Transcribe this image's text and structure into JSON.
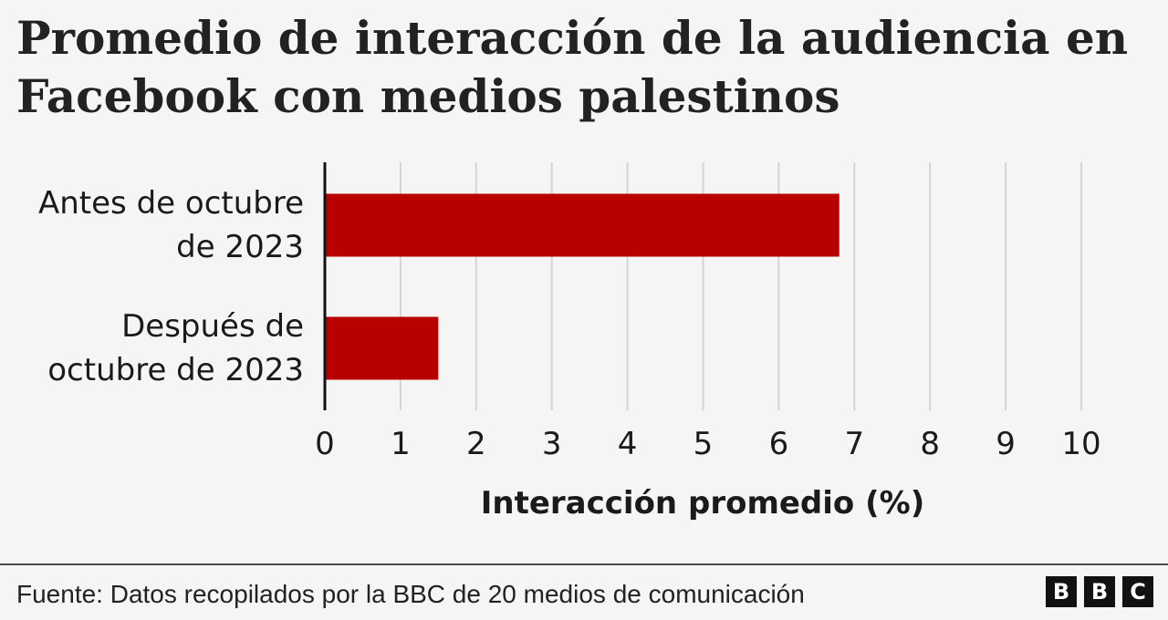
{
  "title": "Promedio de interacción de la audiencia en Facebook con medios palestinos",
  "chart_data": {
    "type": "bar",
    "orientation": "horizontal",
    "categories": [
      [
        "Antes de octubre",
        "de 2023"
      ],
      [
        "Después de",
        "octubre de 2023"
      ]
    ],
    "values": [
      6.8,
      1.5
    ],
    "xlim": [
      0,
      10
    ],
    "xticks": [
      "0",
      "1",
      "2",
      "3",
      "4",
      "5",
      "6",
      "7",
      "8",
      "9",
      "10"
    ],
    "xlabel": "Interacción promedio (%)",
    "ylabel": "",
    "grid": true,
    "bar_color": "#b80000",
    "grid_color": "#d4d4d4"
  },
  "footer": {
    "source": "Fuente: Datos recopilados por la BBC de 20 medios de comunicación",
    "logo": [
      "B",
      "B",
      "C"
    ]
  }
}
